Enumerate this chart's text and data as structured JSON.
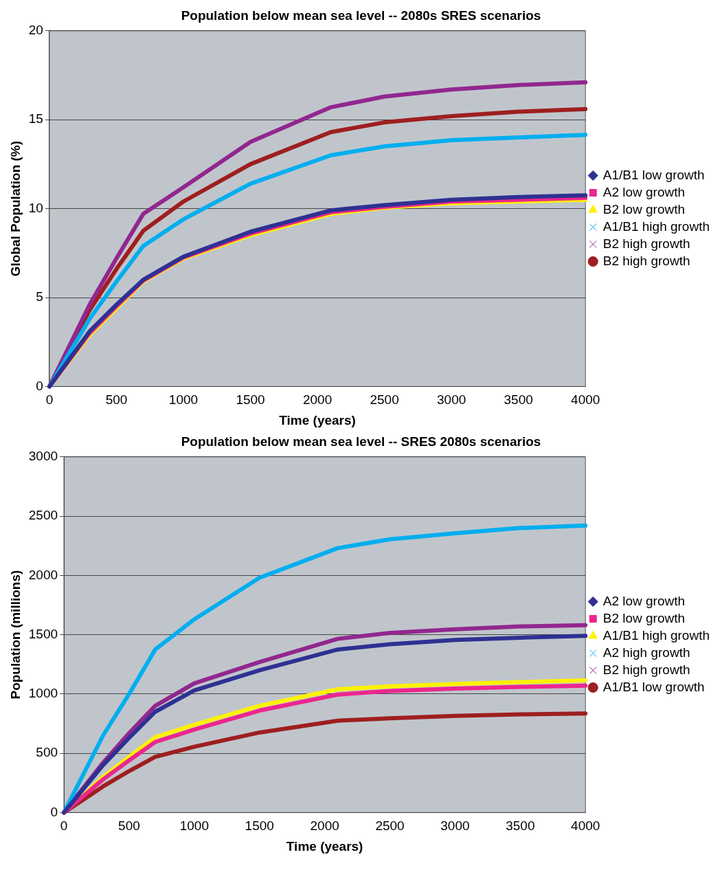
{
  "chart_data": [
    {
      "type": "line",
      "title": "Population below mean sea level -- 2080s SRES scenarios",
      "xlabel": "Time (years)",
      "ylabel": "Global Population (%)",
      "x": [
        0,
        300,
        500,
        700,
        1000,
        1500,
        2100,
        2500,
        3000,
        3500,
        4000
      ],
      "series": [
        {
          "name": "A1/B1 low growth",
          "color": "#2e3192",
          "marker": "diamond",
          "values": [
            0,
            3.1,
            4.6,
            6.0,
            7.3,
            8.7,
            9.9,
            10.2,
            10.5,
            10.65,
            10.75
          ]
        },
        {
          "name": "A2 low growth",
          "color": "#ec268f",
          "marker": "square",
          "values": [
            0,
            3.0,
            4.5,
            5.95,
            7.25,
            8.6,
            9.8,
            10.1,
            10.4,
            10.5,
            10.6
          ]
        },
        {
          "name": "B2 low growth",
          "color": "#fff200",
          "marker": "triangle",
          "values": [
            0,
            2.9,
            4.4,
            5.9,
            7.2,
            8.5,
            9.7,
            10.05,
            10.3,
            10.4,
            10.5
          ]
        },
        {
          "name": "A1/B1 high growth",
          "color": "#00aeef",
          "marker": "cross",
          "values": [
            0,
            3.8,
            5.9,
            7.9,
            9.4,
            11.4,
            13.0,
            13.5,
            13.85,
            14.0,
            14.15
          ]
        },
        {
          "name": "B2 high growth",
          "color": "#92278f",
          "marker": "cross",
          "values": [
            0,
            4.6,
            7.2,
            9.7,
            11.2,
            13.75,
            15.7,
            16.3,
            16.7,
            16.95,
            17.1
          ]
        },
        {
          "name": "B2 high growth",
          "color": "#9e1f1f",
          "marker": "circle",
          "values": [
            0,
            4.3,
            6.6,
            8.75,
            10.4,
            12.5,
            14.3,
            14.85,
            15.2,
            15.45,
            15.6
          ]
        }
      ],
      "xlim": [
        0,
        4000
      ],
      "xticks": [
        0,
        500,
        1000,
        1500,
        2000,
        2500,
        3000,
        3500,
        4000
      ],
      "ylim": [
        0,
        20
      ],
      "yticks": [
        0,
        5,
        10,
        15,
        20
      ],
      "grid": "y",
      "legend": "right",
      "line_style": "solid"
    },
    {
      "type": "line",
      "title": "Population below mean sea level -- SRES 2080s scenarios",
      "xlabel": "Time (years)",
      "ylabel": "Population (millions)",
      "x": [
        0,
        300,
        500,
        700,
        1000,
        1500,
        2100,
        2500,
        3000,
        3500,
        4000
      ],
      "series": [
        {
          "name": "A2 low growth",
          "color": "#2e3192",
          "marker": "diamond",
          "values": [
            0,
            400,
            630,
            850,
            1030,
            1200,
            1375,
            1420,
            1455,
            1475,
            1490
          ]
        },
        {
          "name": "B2 low growth",
          "color": "#ec268f",
          "marker": "square",
          "values": [
            0,
            280,
            440,
            595,
            700,
            860,
            995,
            1025,
            1045,
            1060,
            1070
          ]
        },
        {
          "name": "A1/B1 high growth",
          "color": "#fff200",
          "marker": "triangle",
          "values": [
            0,
            300,
            470,
            635,
            740,
            900,
            1040,
            1065,
            1085,
            1100,
            1115
          ]
        },
        {
          "name": "A2 high growth",
          "color": "#00aeef",
          "marker": "cross",
          "values": [
            0,
            650,
            1000,
            1375,
            1630,
            1980,
            2230,
            2305,
            2355,
            2400,
            2420
          ]
        },
        {
          "name": "B2 high growth",
          "color": "#92278f",
          "marker": "cross",
          "values": [
            0,
            420,
            670,
            900,
            1090,
            1270,
            1465,
            1515,
            1545,
            1570,
            1580
          ]
        },
        {
          "name": "A1/B1 low growth",
          "color": "#9e1f1f",
          "marker": "circle",
          "values": [
            0,
            220,
            350,
            470,
            555,
            675,
            775,
            795,
            815,
            828,
            836
          ]
        }
      ],
      "xlim": [
        0,
        4000
      ],
      "xticks": [
        0,
        500,
        1000,
        1500,
        2000,
        2500,
        3000,
        3500,
        4000
      ],
      "ylim": [
        0,
        3000
      ],
      "yticks": [
        0,
        500,
        1000,
        1500,
        2000,
        2500,
        3000
      ],
      "grid": "y",
      "legend": "right",
      "line_style": "solid"
    }
  ]
}
